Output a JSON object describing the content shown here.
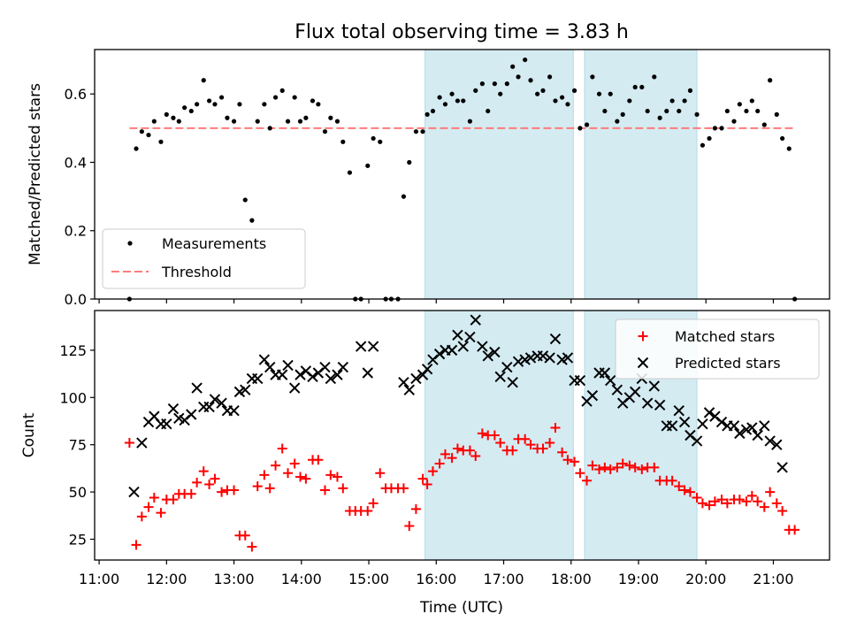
{
  "figure": {
    "title": "Flux total observing time = 3.83 h"
  },
  "chart_data": [
    {
      "type": "scatter",
      "panel": "top",
      "title": "Flux total observing time = 3.83 h",
      "xlabel": "",
      "ylabel": "Matched/Predicted stars",
      "xlim": [
        "10:56",
        "21:50"
      ],
      "ylim": [
        0,
        0.73
      ],
      "yticks": [
        0.0,
        0.2,
        0.4,
        0.6
      ],
      "ytick_labels": [
        "0.0",
        "0.2",
        "0.4",
        "0.6"
      ],
      "grid": false,
      "legend_position": "lower-left",
      "highlight_spans": [
        [
          "15:50",
          "18:02"
        ],
        [
          "18:12",
          "19:52"
        ]
      ],
      "highlight_color": "#add8e6",
      "series": [
        {
          "name": "Measurements",
          "kind": "scatter",
          "color": "#000000",
          "x": [
            "11:27",
            "11:33",
            "11:38",
            "11:44",
            "11:49",
            "11:55",
            "12:00",
            "12:06",
            "12:11",
            "12:16",
            "12:22",
            "12:27",
            "12:33",
            "12:38",
            "12:43",
            "12:49",
            "12:54",
            "13:00",
            "13:05",
            "13:10",
            "13:16",
            "13:21",
            "13:27",
            "13:32",
            "13:37",
            "13:43",
            "13:48",
            "13:54",
            "13:59",
            "14:04",
            "14:10",
            "14:15",
            "14:21",
            "14:26",
            "14:32",
            "14:37",
            "14:43",
            "14:48",
            "14:53",
            "14:59",
            "15:04",
            "15:10",
            "15:15",
            "15:20",
            "15:26",
            "15:31",
            "15:36",
            "15:42",
            "15:48",
            "15:52",
            "15:57",
            "16:03",
            "16:08",
            "16:14",
            "16:19",
            "16:24",
            "16:30",
            "16:35",
            "16:41",
            "16:46",
            "16:52",
            "16:57",
            "17:03",
            "17:08",
            "17:13",
            "17:19",
            "17:24",
            "17:30",
            "17:35",
            "17:41",
            "17:46",
            "17:52",
            "17:57",
            "18:03",
            "18:08",
            "18:14",
            "18:19",
            "18:25",
            "18:30",
            "18:35",
            "18:41",
            "18:46",
            "18:52",
            "18:57",
            "19:03",
            "19:08",
            "19:14",
            "19:19",
            "19:25",
            "19:30",
            "19:36",
            "19:41",
            "19:46",
            "19:52",
            "19:57",
            "20:03",
            "20:08",
            "20:14",
            "20:19",
            "20:25",
            "20:30",
            "20:36",
            "20:41",
            "20:46",
            "20:52",
            "20:57",
            "21:03",
            "21:08",
            "21:14",
            "21:19"
          ],
          "y": [
            0.0,
            0.44,
            0.49,
            0.48,
            0.52,
            0.46,
            0.54,
            0.53,
            0.52,
            0.56,
            0.55,
            0.57,
            0.64,
            0.58,
            0.57,
            0.59,
            0.53,
            0.52,
            0.57,
            0.29,
            0.23,
            0.52,
            0.57,
            0.5,
            0.59,
            0.61,
            0.52,
            0.59,
            0.52,
            0.53,
            0.58,
            0.57,
            0.49,
            0.53,
            0.52,
            0.46,
            0.37,
            0.0,
            0.0,
            0.39,
            0.47,
            0.46,
            0.0,
            0.0,
            0.0,
            0.3,
            0.4,
            0.49,
            0.49,
            0.54,
            0.55,
            0.59,
            0.57,
            0.6,
            0.58,
            0.58,
            0.52,
            0.61,
            0.63,
            0.55,
            0.63,
            0.6,
            0.63,
            0.68,
            0.65,
            0.7,
            0.64,
            0.6,
            0.61,
            0.65,
            0.58,
            0.59,
            0.57,
            0.61,
            0.5,
            0.51,
            0.65,
            0.6,
            0.55,
            0.6,
            0.52,
            0.54,
            0.58,
            0.62,
            0.62,
            0.55,
            0.65,
            0.53,
            0.55,
            0.58,
            0.55,
            0.58,
            0.61,
            0.54,
            0.45,
            0.47,
            0.5,
            0.5,
            0.55,
            0.52,
            0.57,
            0.55,
            0.58,
            0.55,
            0.51,
            0.64,
            0.54,
            0.47,
            0.44,
            0.0
          ]
        },
        {
          "name": "Threshold",
          "kind": "line",
          "color": "#ff7a7a",
          "dash": "dashed",
          "x": [
            "11:27",
            "21:19"
          ],
          "y": [
            0.5,
            0.5
          ]
        }
      ]
    },
    {
      "type": "scatter",
      "panel": "bottom",
      "title": "",
      "xlabel": "Time (UTC)",
      "ylabel": "Count",
      "xlim": [
        "10:56",
        "21:50"
      ],
      "ylim": [
        14,
        146
      ],
      "yticks": [
        25,
        50,
        75,
        100,
        125
      ],
      "ytick_labels": [
        "25",
        "50",
        "75",
        "100",
        "125"
      ],
      "xticks": [
        "11:00",
        "12:00",
        "13:00",
        "14:00",
        "15:00",
        "16:00",
        "17:00",
        "18:00",
        "19:00",
        "20:00",
        "21:00"
      ],
      "grid": false,
      "legend_position": "upper-right",
      "highlight_spans": [
        [
          "15:50",
          "18:02"
        ],
        [
          "18:12",
          "19:52"
        ]
      ],
      "highlight_color": "#add8e6",
      "series": [
        {
          "name": "Matched stars",
          "kind": "scatter",
          "marker": "+",
          "color": "#ff0000",
          "x": [
            "11:27",
            "11:33",
            "11:38",
            "11:44",
            "11:49",
            "11:55",
            "12:00",
            "12:06",
            "12:11",
            "12:16",
            "12:22",
            "12:27",
            "12:33",
            "12:38",
            "12:43",
            "12:49",
            "12:54",
            "13:00",
            "13:05",
            "13:10",
            "13:16",
            "13:21",
            "13:27",
            "13:32",
            "13:37",
            "13:43",
            "13:48",
            "13:54",
            "13:59",
            "14:04",
            "14:10",
            "14:15",
            "14:21",
            "14:26",
            "14:32",
            "14:37",
            "14:43",
            "14:48",
            "14:53",
            "14:59",
            "15:04",
            "15:10",
            "15:15",
            "15:20",
            "15:26",
            "15:31",
            "15:36",
            "15:42",
            "15:48",
            "15:52",
            "15:57",
            "16:03",
            "16:08",
            "16:14",
            "16:19",
            "16:24",
            "16:30",
            "16:35",
            "16:41",
            "16:46",
            "16:52",
            "16:57",
            "17:03",
            "17:08",
            "17:13",
            "17:19",
            "17:24",
            "17:30",
            "17:35",
            "17:41",
            "17:46",
            "17:52",
            "17:57",
            "18:03",
            "18:08",
            "18:14",
            "18:19",
            "18:25",
            "18:30",
            "18:35",
            "18:41",
            "18:46",
            "18:52",
            "18:57",
            "19:03",
            "19:08",
            "19:14",
            "19:19",
            "19:25",
            "19:30",
            "19:36",
            "19:41",
            "19:46",
            "19:52",
            "19:57",
            "20:03",
            "20:08",
            "20:14",
            "20:19",
            "20:25",
            "20:30",
            "20:36",
            "20:41",
            "20:46",
            "20:52",
            "20:57",
            "21:03",
            "21:08",
            "21:14",
            "21:19"
          ],
          "y": [
            76,
            22,
            37,
            42,
            47,
            39,
            46,
            46,
            49,
            49,
            49,
            55,
            61,
            54,
            57,
            50,
            51,
            51,
            27,
            27,
            21,
            53,
            59,
            52,
            64,
            73,
            60,
            65,
            58,
            57,
            67,
            67,
            51,
            59,
            58,
            52,
            40,
            40,
            40,
            40,
            44,
            60,
            52,
            52,
            52,
            52,
            32,
            41,
            57,
            54,
            61,
            65,
            70,
            68,
            73,
            72,
            72,
            69,
            81,
            80,
            80,
            76,
            72,
            72,
            78,
            78,
            75,
            73,
            73,
            76,
            84,
            71,
            67,
            66,
            60,
            56,
            64,
            62,
            63,
            62,
            63,
            65,
            64,
            63,
            62,
            63,
            63,
            56,
            56,
            56,
            53,
            51,
            50,
            47,
            44,
            43,
            45,
            46,
            44,
            46,
            46,
            45,
            48,
            45,
            42,
            50,
            44,
            40,
            30,
            30
          ]
        },
        {
          "name": "Predicted stars",
          "kind": "scatter",
          "marker": "x",
          "color": "#000000",
          "x": [
            "11:31",
            "11:38",
            "11:44",
            "11:49",
            "11:55",
            "12:00",
            "12:06",
            "12:11",
            "12:16",
            "12:22",
            "12:27",
            "12:33",
            "12:38",
            "12:43",
            "12:49",
            "12:54",
            "13:00",
            "13:05",
            "13:10",
            "13:16",
            "13:21",
            "13:27",
            "13:32",
            "13:37",
            "13:43",
            "13:48",
            "13:54",
            "13:59",
            "14:04",
            "14:10",
            "14:15",
            "14:21",
            "14:26",
            "14:32",
            "14:37",
            "14:53",
            "14:59",
            "15:04",
            "15:31",
            "15:36",
            "15:42",
            "15:48",
            "15:52",
            "15:57",
            "16:03",
            "16:08",
            "16:14",
            "16:19",
            "16:24",
            "16:30",
            "16:35",
            "16:41",
            "16:46",
            "16:52",
            "16:57",
            "17:03",
            "17:08",
            "17:13",
            "17:19",
            "17:24",
            "17:30",
            "17:35",
            "17:41",
            "17:46",
            "17:52",
            "17:57",
            "18:03",
            "18:08",
            "18:14",
            "18:19",
            "18:25",
            "18:30",
            "18:35",
            "18:41",
            "18:46",
            "18:52",
            "18:57",
            "19:03",
            "19:08",
            "19:14",
            "19:19",
            "19:25",
            "19:30",
            "19:36",
            "19:41",
            "19:46",
            "19:52",
            "19:57",
            "20:03",
            "20:08",
            "20:14",
            "20:19",
            "20:25",
            "20:30",
            "20:36",
            "20:41",
            "20:46",
            "20:52",
            "20:57",
            "21:03",
            "21:08"
          ],
          "y": [
            50,
            76,
            87,
            90,
            86,
            86,
            94,
            89,
            88,
            91,
            105,
            95,
            95,
            99,
            97,
            93,
            93,
            103,
            104,
            110,
            110,
            120,
            116,
            112,
            112,
            117,
            105,
            112,
            114,
            111,
            113,
            116,
            110,
            112,
            116,
            127,
            113,
            127,
            108,
            104,
            110,
            112,
            115,
            120,
            123,
            125,
            125,
            133,
            127,
            132,
            141,
            127,
            122,
            124,
            111,
            116,
            108,
            119,
            120,
            121,
            122,
            122,
            121,
            131,
            120,
            121,
            109,
            109,
            98,
            101,
            113,
            113,
            109,
            104,
            97,
            100,
            103,
            110,
            97,
            106,
            96,
            85,
            85,
            93,
            87,
            80,
            77,
            86,
            92,
            90,
            87,
            85,
            85,
            81,
            83,
            84,
            80,
            85,
            77,
            75,
            63
          ]
        }
      ]
    }
  ]
}
